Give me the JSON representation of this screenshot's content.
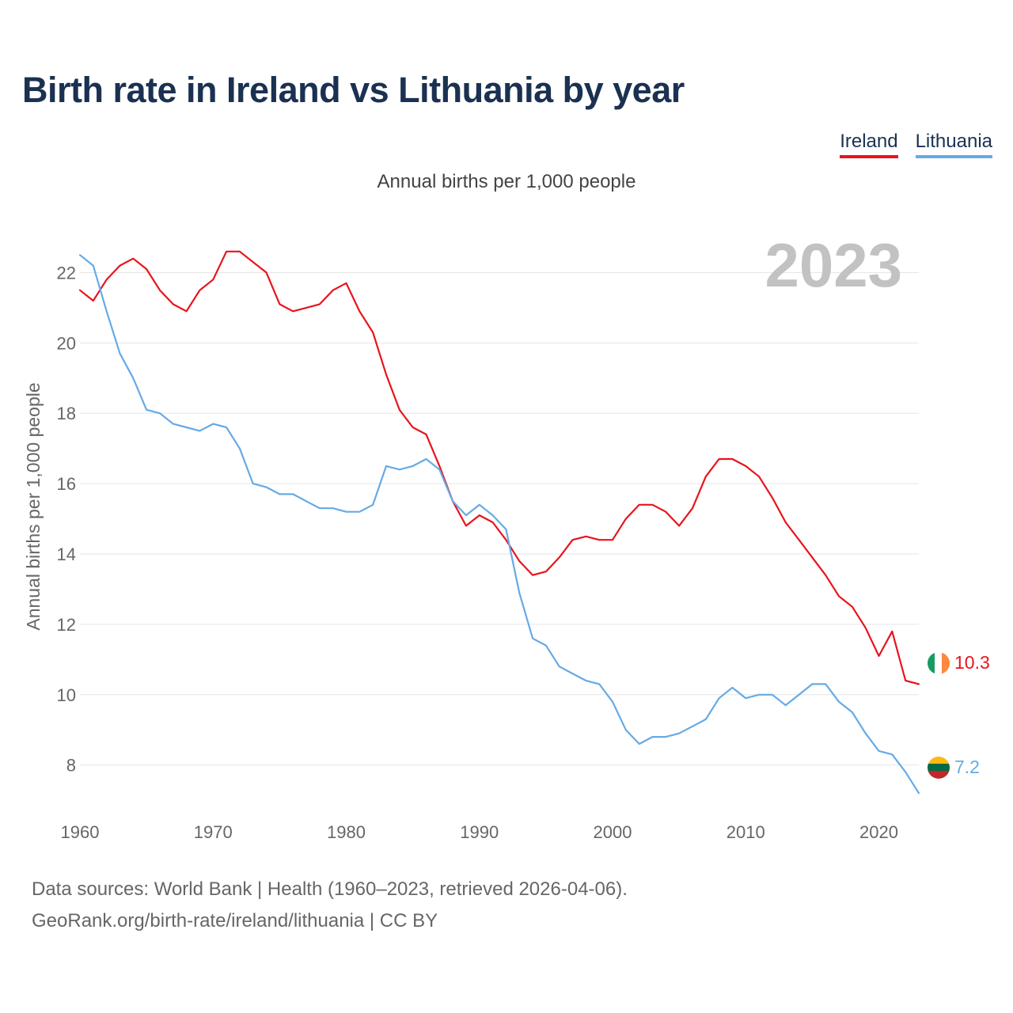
{
  "title": "Birth rate in Ireland vs Lithuania by year",
  "subtitle": "Annual births per 1,000 people",
  "legend": [
    {
      "label": "Ireland",
      "color": "#e8141c"
    },
    {
      "label": "Lithuania",
      "color": "#66aae6"
    }
  ],
  "year_display": "2023",
  "footer": {
    "line1": "Data sources: World Bank | Health (1960–2023, retrieved 2026-04-06).",
    "line2": "GeoRank.org/birth-rate/ireland/lithuania | CC BY"
  },
  "chart_data": {
    "type": "line",
    "title": "Birth rate in Ireland vs Lithuania by year",
    "subtitle": "Annual births per 1,000 people",
    "xlabel": "",
    "ylabel": "Annual births per 1,000 people",
    "xlim": [
      1960,
      2023
    ],
    "ylim": [
      6.8,
      23
    ],
    "x_ticks": [
      1960,
      1970,
      1980,
      1990,
      2000,
      2010,
      2020
    ],
    "y_ticks": [
      8,
      10,
      12,
      14,
      16,
      18,
      20,
      22
    ],
    "grid": true,
    "legend_position": "top-right",
    "x": [
      1960,
      1961,
      1962,
      1963,
      1964,
      1965,
      1966,
      1967,
      1968,
      1969,
      1970,
      1971,
      1972,
      1973,
      1974,
      1975,
      1976,
      1977,
      1978,
      1979,
      1980,
      1981,
      1982,
      1983,
      1984,
      1985,
      1986,
      1987,
      1988,
      1989,
      1990,
      1991,
      1992,
      1993,
      1994,
      1995,
      1996,
      1997,
      1998,
      1999,
      2000,
      2001,
      2002,
      2003,
      2004,
      2005,
      2006,
      2007,
      2008,
      2009,
      2010,
      2011,
      2012,
      2013,
      2014,
      2015,
      2016,
      2017,
      2018,
      2019,
      2020,
      2021,
      2022,
      2023
    ],
    "series": [
      {
        "name": "Ireland",
        "color": "#e8141c",
        "end_label": "10.3",
        "flag": "ireland-flag",
        "values": [
          21.5,
          21.2,
          21.8,
          22.2,
          22.4,
          22.1,
          21.5,
          21.1,
          20.9,
          21.5,
          21.8,
          22.6,
          22.6,
          22.3,
          22.0,
          21.1,
          20.9,
          21.0,
          21.1,
          21.5,
          21.7,
          20.9,
          20.3,
          19.1,
          18.1,
          17.6,
          17.4,
          16.5,
          15.5,
          14.8,
          15.1,
          14.9,
          14.4,
          13.8,
          13.4,
          13.5,
          13.9,
          14.4,
          14.5,
          14.4,
          14.4,
          15.0,
          15.4,
          15.4,
          15.2,
          14.8,
          15.3,
          16.2,
          16.7,
          16.7,
          16.5,
          16.2,
          15.6,
          14.9,
          14.4,
          13.9,
          13.4,
          12.8,
          12.5,
          11.9,
          11.1,
          11.8,
          10.4,
          10.3
        ]
      },
      {
        "name": "Lithuania",
        "color": "#66aae6",
        "end_label": "7.2",
        "flag": "lithuania-flag",
        "values": [
          22.5,
          22.2,
          20.9,
          19.7,
          19.0,
          18.1,
          18.0,
          17.7,
          17.6,
          17.5,
          17.7,
          17.6,
          17.0,
          16.0,
          15.9,
          15.7,
          15.7,
          15.5,
          15.3,
          15.3,
          15.2,
          15.2,
          15.4,
          16.5,
          16.4,
          16.5,
          16.7,
          16.4,
          15.5,
          15.1,
          15.4,
          15.1,
          14.7,
          12.9,
          11.6,
          11.4,
          10.8,
          10.6,
          10.4,
          10.3,
          9.8,
          9.0,
          8.6,
          8.8,
          8.8,
          8.9,
          9.1,
          9.3,
          9.9,
          10.2,
          9.9,
          10.0,
          10.0,
          9.7,
          10.0,
          10.3,
          10.3,
          9.8,
          9.5,
          8.9,
          8.4,
          8.3,
          7.8,
          7.2
        ]
      }
    ]
  }
}
